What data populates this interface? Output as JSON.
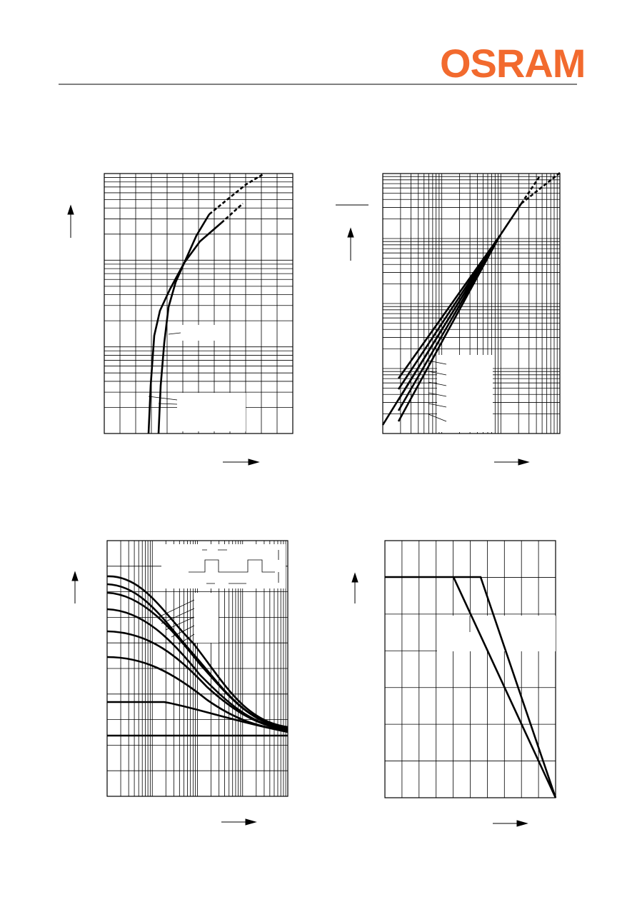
{
  "header": {
    "logo": "OSRAM"
  }
}
